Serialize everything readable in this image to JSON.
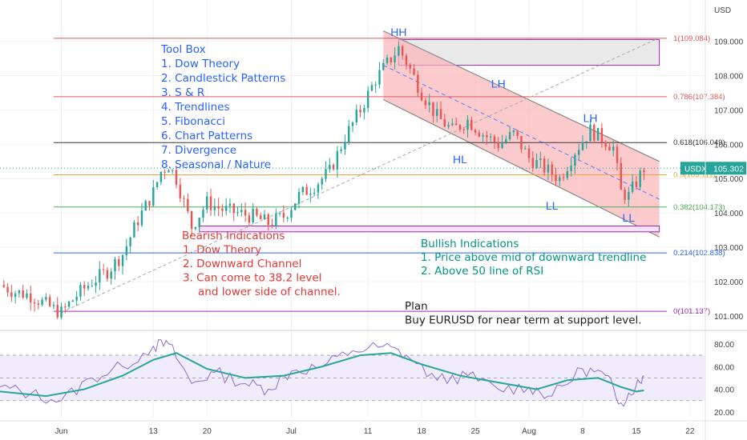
{
  "chart_data": [
    {
      "type": "candlestick",
      "currency_label": "USD",
      "ylim": [
        100.65,
        110.2
      ],
      "yticks": [
        101,
        102,
        103,
        104,
        105,
        106,
        107,
        108,
        109
      ],
      "ytick_labels": [
        "101.000",
        "102.000",
        "103.000",
        "104.000",
        "105.000",
        "106.000",
        "107.000",
        "108.000",
        "109.000"
      ],
      "xlim": [
        "2022-05-24",
        "2022-08-24"
      ],
      "x_ticks": [
        {
          "label": "Jun",
          "date": "2022-06-01"
        },
        {
          "label": "13",
          "date": "2022-06-13"
        },
        {
          "label": "20",
          "date": "2022-06-20"
        },
        {
          "label": "Jul",
          "date": "2022-07-01"
        },
        {
          "label": "11",
          "date": "2022-07-11"
        },
        {
          "label": "18",
          "date": "2022-07-18"
        },
        {
          "label": "25",
          "date": "2022-07-25"
        },
        {
          "label": "Aug",
          "date": "2022-08-01"
        },
        {
          "label": "8",
          "date": "2022-08-08"
        },
        {
          "label": "15",
          "date": "2022-08-15"
        },
        {
          "label": "22",
          "date": "2022-08-22"
        }
      ],
      "symbol": "USDX",
      "last_price": 105.302,
      "last_price_label": "105.302",
      "price_path": [
        [
          "2022-05-24",
          101.9
        ],
        [
          "2022-05-26",
          101.7
        ],
        [
          "2022-05-28",
          101.6
        ],
        [
          "2022-05-31",
          101.2
        ],
        [
          "2022-06-01",
          101.1
        ],
        [
          "2022-06-03",
          101.6
        ],
        [
          "2022-06-05",
          102.0
        ],
        [
          "2022-06-07",
          102.3
        ],
        [
          "2022-06-09",
          102.8
        ],
        [
          "2022-06-11",
          103.8
        ],
        [
          "2022-06-13",
          104.6
        ],
        [
          "2022-06-14",
          105.2
        ],
        [
          "2022-06-15",
          105.4
        ],
        [
          "2022-06-16",
          105.0
        ],
        [
          "2022-06-17",
          104.3
        ],
        [
          "2022-06-18",
          103.6
        ],
        [
          "2022-06-20",
          104.3
        ],
        [
          "2022-06-22",
          104.1
        ],
        [
          "2022-06-24",
          104.0
        ],
        [
          "2022-06-26",
          103.9
        ],
        [
          "2022-06-28",
          103.7
        ],
        [
          "2022-06-30",
          103.9
        ],
        [
          "2022-07-02",
          104.5
        ],
        [
          "2022-07-04",
          104.8
        ],
        [
          "2022-07-06",
          105.2
        ],
        [
          "2022-07-08",
          106.2
        ],
        [
          "2022-07-10",
          107.0
        ],
        [
          "2022-07-12",
          107.9
        ],
        [
          "2022-07-14",
          108.5
        ],
        [
          "2022-07-15",
          108.8
        ],
        [
          "2022-07-16",
          108.4
        ],
        [
          "2022-07-18",
          107.5
        ],
        [
          "2022-07-20",
          106.8
        ],
        [
          "2022-07-22",
          106.4
        ],
        [
          "2022-07-24",
          106.7
        ],
        [
          "2022-07-26",
          106.3
        ],
        [
          "2022-07-28",
          106.0
        ],
        [
          "2022-07-30",
          106.3
        ],
        [
          "2022-08-01",
          105.6
        ],
        [
          "2022-08-03",
          105.3
        ],
        [
          "2022-08-05",
          105.0
        ],
        [
          "2022-08-07",
          105.8
        ],
        [
          "2022-08-09",
          106.4
        ],
        [
          "2022-08-11",
          106.1
        ],
        [
          "2022-08-12",
          105.9
        ],
        [
          "2022-08-13",
          104.6
        ],
        [
          "2022-08-14",
          104.5
        ],
        [
          "2022-08-15",
          104.9
        ],
        [
          "2022-08-16",
          105.302
        ]
      ],
      "fibonacci": [
        {
          "label": "1(109.084)",
          "value": 109.084,
          "color": "#e05a5a"
        },
        {
          "label": "0.786(107.384)",
          "value": 107.384,
          "color": "#e05a5a"
        },
        {
          "label": "0.618(106.049)",
          "value": 106.049,
          "color": "#333333"
        },
        {
          "label": "0.5(105.111)",
          "value": 105.111,
          "color": "#f2a23a"
        },
        {
          "label": "0.382(104.173)",
          "value": 104.173,
          "color": "#4caf50"
        },
        {
          "label": "0.214(102.838)",
          "value": 102.838,
          "color": "#2962ff"
        },
        {
          "label": "0(101.137)",
          "value": 101.137,
          "color": "#9c27b0"
        }
      ],
      "swing_labels": [
        {
          "text": "HH",
          "date": "2022-07-15",
          "value": 109.15,
          "color": "#2962ff"
        },
        {
          "text": "LH",
          "date": "2022-07-28",
          "value": 107.65,
          "color": "#2962ff"
        },
        {
          "text": "HL",
          "date": "2022-07-23",
          "value": 105.45,
          "color": "#2962ff"
        },
        {
          "text": "LH",
          "date": "2022-08-09",
          "value": 106.65,
          "color": "#2962ff"
        },
        {
          "text": "LL",
          "date": "2022-08-04",
          "value": 104.1,
          "color": "#2962ff"
        },
        {
          "text": "LL",
          "date": "2022-08-14",
          "value": 103.75,
          "color": "#2962ff"
        }
      ],
      "channel": {
        "upper": [
          [
            "2022-07-13",
            109.3
          ],
          [
            "2022-08-18",
            105.5
          ]
        ],
        "lower": [
          [
            "2022-07-13",
            107.3
          ],
          [
            "2022-08-18",
            103.3
          ]
        ],
        "mid": [
          [
            "2022-07-13",
            108.3
          ],
          [
            "2022-08-18",
            104.4
          ]
        ],
        "fill": "#f8b4b8"
      },
      "resistance_zone": {
        "from": "2022-07-15",
        "to": "2022-08-18",
        "low": 108.3,
        "high": 109.05
      },
      "support_zone": {
        "from": "2022-06-19",
        "to": "2022-08-18",
        "low": 103.45,
        "high": 103.62
      },
      "trendline": {
        "from": [
          "2022-06-01",
          101.1
        ],
        "to": [
          "2022-08-18",
          109.1
        ]
      },
      "annotations": {
        "toolbox": {
          "color": "#2962ff",
          "lines": [
            "Tool Box",
            "1. Dow Theory",
            "2. Candlestick Patterns",
            "3. S & R",
            "4. Trendlines",
            "5. Fibonacci",
            "6. Chart Patterns",
            "7. Divergence",
            "8. Seasonal / Nature"
          ]
        },
        "bearish": {
          "color": "#e53935",
          "lines": [
            "Bearish Indications",
            "1. Dow Theory",
            "2. Downward Channel",
            "3. Can come to 38.2 level",
            "and lower side of channel."
          ]
        },
        "bullish": {
          "color": "#009688",
          "lines": [
            "Bullish Indications",
            "1. Price above mid of downward trendline",
            "2. Above 50 line of RSI"
          ]
        },
        "plan": {
          "color": "#222222",
          "lines": [
            "Plan",
            "Buy EURUSD for near term at support level."
          ]
        }
      }
    },
    {
      "type": "line",
      "panel": "RSI",
      "ylim": [
        15,
        87
      ],
      "yticks": [
        20,
        40,
        60,
        80
      ],
      "ytick_labels": [
        "20.00",
        "40.00",
        "60.00",
        "80.00"
      ],
      "band": {
        "low": 30,
        "high": 70,
        "mid": 50
      },
      "series": [
        {
          "color": "#8e6bd6",
          "values": [
            [
              "2022-05-24",
              42
            ],
            [
              "2022-05-28",
              36
            ],
            [
              "2022-06-01",
              30
            ],
            [
              "2022-06-05",
              50
            ],
            [
              "2022-06-09",
              60
            ],
            [
              "2022-06-13",
              78
            ],
            [
              "2022-06-15",
              80
            ],
            [
              "2022-06-18",
              45
            ],
            [
              "2022-06-21",
              55
            ],
            [
              "2022-06-25",
              45
            ],
            [
              "2022-06-28",
              40
            ],
            [
              "2022-07-01",
              56
            ],
            [
              "2022-07-05",
              60
            ],
            [
              "2022-07-09",
              74
            ],
            [
              "2022-07-13",
              78
            ],
            [
              "2022-07-16",
              70
            ],
            [
              "2022-07-20",
              48
            ],
            [
              "2022-07-24",
              52
            ],
            [
              "2022-07-28",
              40
            ],
            [
              "2022-08-01",
              42
            ],
            [
              "2022-08-04",
              34
            ],
            [
              "2022-08-08",
              58
            ],
            [
              "2022-08-11",
              52
            ],
            [
              "2022-08-13",
              28
            ],
            [
              "2022-08-15",
              44
            ],
            [
              "2022-08-16",
              52
            ]
          ]
        },
        {
          "color": "#26a69a",
          "values": [
            [
              "2022-05-24",
              38
            ],
            [
              "2022-05-30",
              34
            ],
            [
              "2022-06-04",
              40
            ],
            [
              "2022-06-09",
              52
            ],
            [
              "2022-06-13",
              66
            ],
            [
              "2022-06-16",
              72
            ],
            [
              "2022-06-20",
              58
            ],
            [
              "2022-06-25",
              50
            ],
            [
              "2022-06-30",
              52
            ],
            [
              "2022-07-05",
              60
            ],
            [
              "2022-07-10",
              70
            ],
            [
              "2022-07-14",
              72
            ],
            [
              "2022-07-18",
              62
            ],
            [
              "2022-07-23",
              52
            ],
            [
              "2022-07-28",
              46
            ],
            [
              "2022-08-02",
              40
            ],
            [
              "2022-08-06",
              48
            ],
            [
              "2022-08-10",
              50
            ],
            [
              "2022-08-13",
              42
            ],
            [
              "2022-08-15",
              38
            ],
            [
              "2022-08-16",
              39
            ]
          ]
        }
      ]
    }
  ]
}
